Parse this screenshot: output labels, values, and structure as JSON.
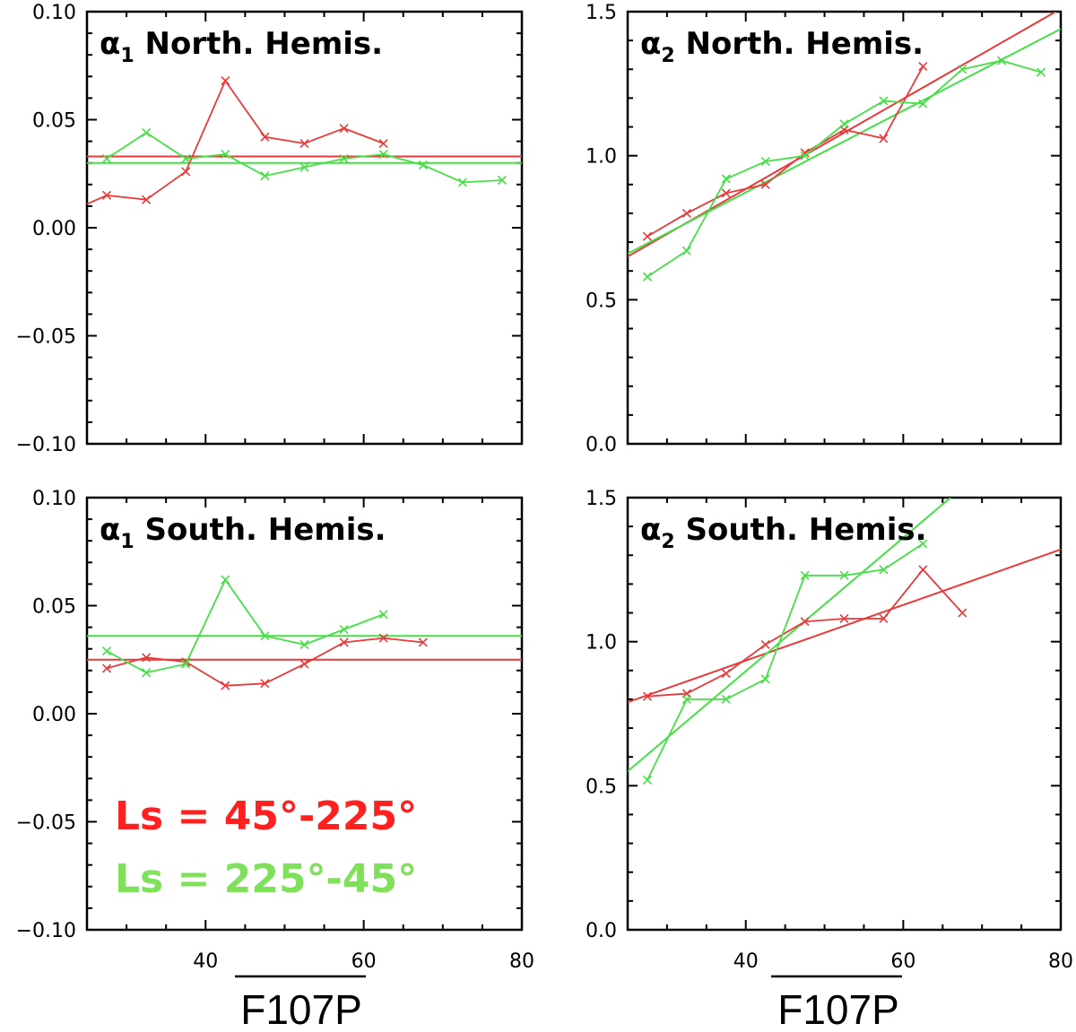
{
  "colors": {
    "red": "#e83a3a",
    "green": "#44e044",
    "legend_red": "#ff2020",
    "legend_green": "#7fe05a",
    "axis": "#000000"
  },
  "legend": {
    "red_label": "Ls = 45°-225°",
    "green_label": "Ls = 225°-45°",
    "placement": "bottom-left of lower-left panel"
  },
  "xlabels": [
    "F107P",
    "F107P"
  ],
  "chart_data": [
    {
      "type": "line",
      "title_main": "α",
      "title_sub": "1",
      "title_rest": " North. Hemis.",
      "xlim": [
        25,
        80
      ],
      "ylim": [
        -0.1,
        0.1
      ],
      "xticks": [
        40,
        60,
        80
      ],
      "xtick_labels": [
        "",
        "",
        ""
      ],
      "yticks": [
        -0.1,
        -0.05,
        0,
        0.05,
        0.1
      ],
      "ytick_labels": [
        "−0.10",
        "−0.05",
        "0.00",
        "0.05",
        "0.10"
      ],
      "series": [
        {
          "color": "red",
          "x": [
            25,
            27.5,
            32.5,
            37.5,
            42.5,
            47.5,
            52.5,
            57.5,
            62.5
          ],
          "y": [
            0.011,
            0.015,
            0.013,
            0.026,
            0.068,
            0.042,
            0.039,
            0.046,
            0.039
          ]
        },
        {
          "color": "green",
          "x": [
            27.5,
            32.5,
            37.5,
            42.5,
            47.5,
            52.5,
            57.5,
            62.5,
            67.5,
            72.5,
            77.5
          ],
          "y": [
            0.032,
            0.044,
            0.032,
            0.034,
            0.024,
            0.028,
            0.032,
            0.034,
            0.029,
            0.021,
            0.022
          ]
        }
      ],
      "fits": [
        {
          "color": "red",
          "x": [
            25,
            80
          ],
          "y": [
            0.033,
            0.033
          ]
        },
        {
          "color": "green",
          "x": [
            25,
            80
          ],
          "y": [
            0.03,
            0.03
          ]
        }
      ]
    },
    {
      "type": "line",
      "title_main": "α",
      "title_sub": "2",
      "title_rest": " North. Hemis.",
      "xlim": [
        25,
        80
      ],
      "ylim": [
        0,
        1.5
      ],
      "xticks": [
        40,
        60,
        80
      ],
      "xtick_labels": [
        "",
        "",
        ""
      ],
      "yticks": [
        0,
        0.5,
        1.0,
        1.5
      ],
      "ytick_labels": [
        "0.0",
        "0.5",
        "1.0",
        "1.5"
      ],
      "series": [
        {
          "color": "red",
          "x": [
            27.5,
            32.5,
            37.5,
            42.5,
            47.5,
            52.5,
            57.5,
            62.5
          ],
          "y": [
            0.72,
            0.8,
            0.87,
            0.9,
            1.01,
            1.09,
            1.06,
            1.31
          ]
        },
        {
          "color": "green",
          "x": [
            27.5,
            32.5,
            37.5,
            42.5,
            47.5,
            52.5,
            57.5,
            62.5,
            67.5,
            72.5,
            77.5
          ],
          "y": [
            0.58,
            0.67,
            0.92,
            0.98,
            1.0,
            1.11,
            1.19,
            1.18,
            1.3,
            1.33,
            1.29
          ]
        }
      ],
      "fits": [
        {
          "color": "red",
          "x": [
            25,
            80
          ],
          "y": [
            0.65,
            1.51
          ]
        },
        {
          "color": "green",
          "x": [
            25,
            80
          ],
          "y": [
            0.66,
            1.44
          ]
        }
      ]
    },
    {
      "type": "line",
      "title_main": "α",
      "title_sub": "1",
      "title_rest": " South. Hemis.",
      "xlim": [
        25,
        80
      ],
      "ylim": [
        -0.1,
        0.1
      ],
      "xticks": [
        40,
        60,
        80
      ],
      "xtick_labels": [
        "40",
        "60",
        "80"
      ],
      "yticks": [
        -0.1,
        -0.05,
        0,
        0.05,
        0.1
      ],
      "ytick_labels": [
        "−0.10",
        "−0.05",
        "0.00",
        "0.05",
        "0.10"
      ],
      "series": [
        {
          "color": "red",
          "x": [
            27.5,
            32.5,
            37.5,
            42.5,
            47.5,
            52.5,
            57.5,
            62.5,
            67.5
          ],
          "y": [
            0.021,
            0.026,
            0.024,
            0.013,
            0.014,
            0.023,
            0.033,
            0.035,
            0.033
          ]
        },
        {
          "color": "green",
          "x": [
            27.5,
            32.5,
            37.5,
            42.5,
            47.5,
            52.5,
            57.5,
            62.5
          ],
          "y": [
            0.029,
            0.019,
            0.023,
            0.062,
            0.036,
            0.032,
            0.039,
            0.046
          ]
        }
      ],
      "fits": [
        {
          "color": "red",
          "x": [
            25,
            80
          ],
          "y": [
            0.025,
            0.025
          ]
        },
        {
          "color": "green",
          "x": [
            25,
            80
          ],
          "y": [
            0.036,
            0.036
          ]
        }
      ]
    },
    {
      "type": "line",
      "title_main": "α",
      "title_sub": "2",
      "title_rest": " South. Hemis.",
      "xlim": [
        25,
        80
      ],
      "ylim": [
        0,
        1.5
      ],
      "xticks": [
        40,
        60,
        80
      ],
      "xtick_labels": [
        "40",
        "60",
        "80"
      ],
      "yticks": [
        0,
        0.5,
        1.0,
        1.5
      ],
      "ytick_labels": [
        "0.0",
        "0.5",
        "1.0",
        "1.5"
      ],
      "series": [
        {
          "color": "red",
          "x": [
            27.5,
            32.5,
            37.5,
            42.5,
            47.5,
            52.5,
            57.5,
            62.5,
            67.5
          ],
          "y": [
            0.81,
            0.82,
            0.89,
            0.99,
            1.07,
            1.08,
            1.08,
            1.25,
            1.1
          ]
        },
        {
          "color": "green",
          "x": [
            27.5,
            32.5,
            37.5,
            42.5,
            47.5,
            52.5,
            57.5,
            62.5
          ],
          "y": [
            0.52,
            0.8,
            0.8,
            0.87,
            1.23,
            1.23,
            1.25,
            1.34
          ]
        }
      ],
      "fits": [
        {
          "color": "red",
          "x": [
            25,
            80
          ],
          "y": [
            0.79,
            1.32
          ]
        },
        {
          "color": "green",
          "x": [
            25,
            66
          ],
          "y": [
            0.55,
            1.5
          ]
        }
      ]
    }
  ]
}
